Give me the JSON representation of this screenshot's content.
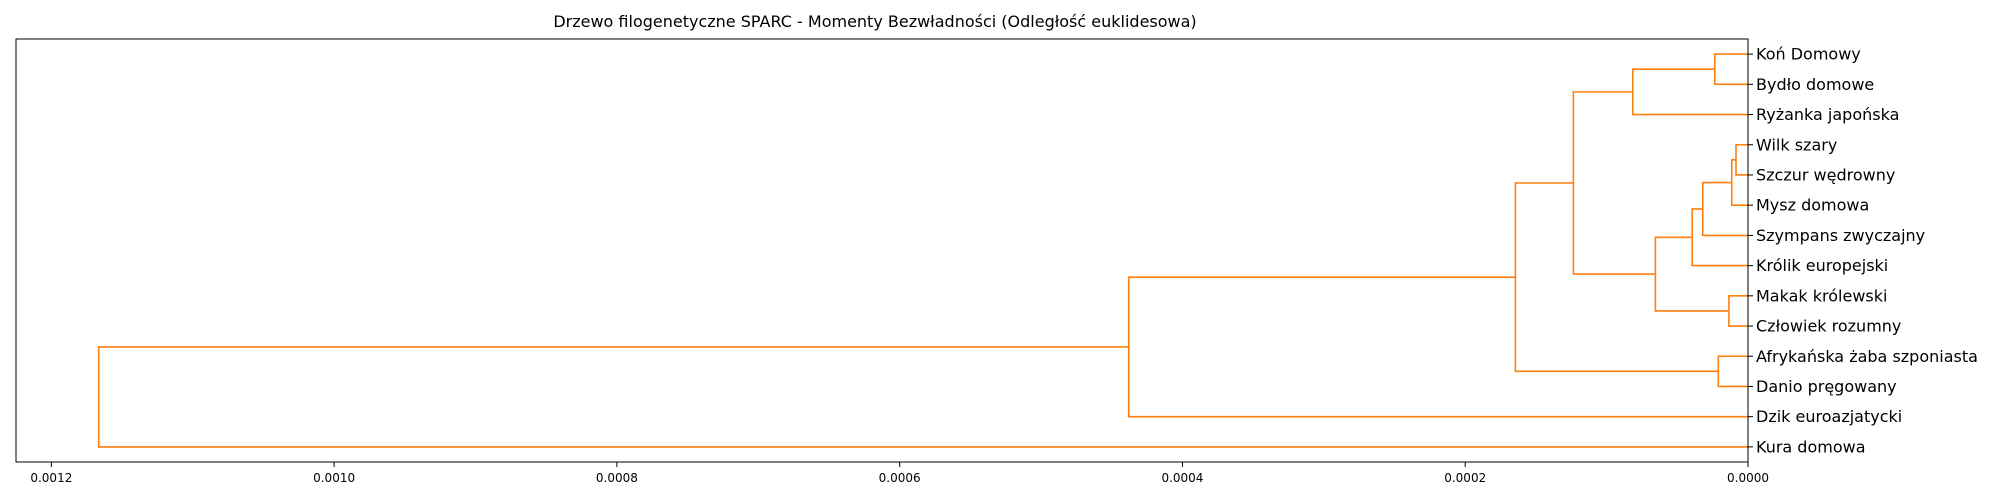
{
  "chart_data": {
    "type": "dendrogram",
    "title": "Drzewo filogenetyczne SPARC - Momenty Bezwładności (Odległość euklidesowa)",
    "xlabel": "",
    "ylabel": "",
    "orientation": "left",
    "xlim": [
      0.001225,
      0.0
    ],
    "x_ticks": [
      0.0012,
      0.001,
      0.0008,
      0.0006,
      0.0004,
      0.0002,
      0.0
    ],
    "x_tick_labels": [
      "0.0012",
      "0.0010",
      "0.0008",
      "0.0006",
      "0.0004",
      "0.0002",
      "0.0000"
    ],
    "grid": false,
    "link_color": "#ff7f0e",
    "leaves": [
      "Koń Domowy",
      "Bydło domowe",
      "Ryżanka japońska",
      "Wilk szary",
      "Szczur wędrowny",
      "Mysz domowa",
      "Szympans zwyczajny",
      "Królik europejski",
      "Makak królewski",
      "Człowiek rozumny",
      "Afrykańska żaba szponiasta",
      "Danio pręgowany",
      "Dzik euroazjatycki",
      "Kura domowa"
    ],
    "merges": [
      {
        "a": "L3",
        "b": "L4",
        "distance": 8.5e-06
      },
      {
        "a": "L5",
        "b": "M0",
        "distance": 1.15e-05
      },
      {
        "a": "L8",
        "b": "L9",
        "distance": 1.35e-05
      },
      {
        "a": "L0",
        "b": "L1",
        "distance": 2.35e-05
      },
      {
        "a": "L10",
        "b": "L11",
        "distance": 2.1e-05
      },
      {
        "a": "L6",
        "b": "M1",
        "distance": 3.2e-05
      },
      {
        "a": "L7",
        "b": "M5",
        "distance": 3.95e-05
      },
      {
        "a": "M6",
        "b": "M2",
        "distance": 6.55e-05
      },
      {
        "a": "L2",
        "b": "M3",
        "distance": 8.15e-05
      },
      {
        "a": "M8",
        "b": "M7",
        "distance": 0.0001235
      },
      {
        "a": "M9",
        "b": "M4",
        "distance": 0.0001645
      },
      {
        "a": "L12",
        "b": "M10",
        "distance": 0.000438
      },
      {
        "a": "L13",
        "b": "M11",
        "distance": 0.0011665
      }
    ]
  }
}
